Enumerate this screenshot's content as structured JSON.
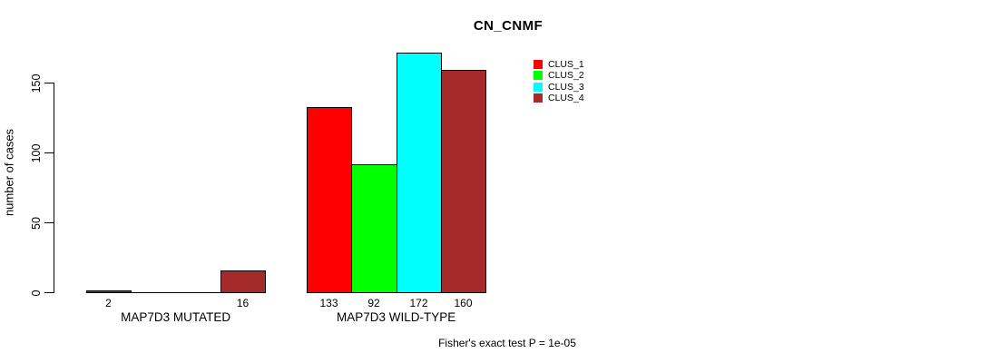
{
  "chart_data": {
    "type": "bar",
    "title": "CN_CNMF",
    "ylabel": "number of cases",
    "xlabel": "",
    "yticks": [
      0,
      50,
      100,
      150
    ],
    "ylim": [
      0,
      178
    ],
    "grid": false,
    "legend_position": "top-right",
    "categories": [
      "MAP7D3 MUTATED",
      "MAP7D3 WILD-TYPE"
    ],
    "series": [
      {
        "name": "CLUS_1",
        "color": "#FF0000",
        "values": [
          2,
          133
        ]
      },
      {
        "name": "CLUS_2",
        "color": "#00FF00",
        "values": [
          0,
          92
        ]
      },
      {
        "name": "CLUS_3",
        "color": "#00FFFF",
        "values": [
          0,
          172
        ]
      },
      {
        "name": "CLUS_4",
        "color": "#A52A2A",
        "values": [
          16,
          160
        ]
      }
    ],
    "bar_value_labels_shown": [
      "2",
      "16",
      "133",
      "92",
      "172",
      "160"
    ],
    "zero_value_bars": "drawn as baseline line, no label",
    "annotation": "Fisher's exact test P = 1e-05"
  }
}
